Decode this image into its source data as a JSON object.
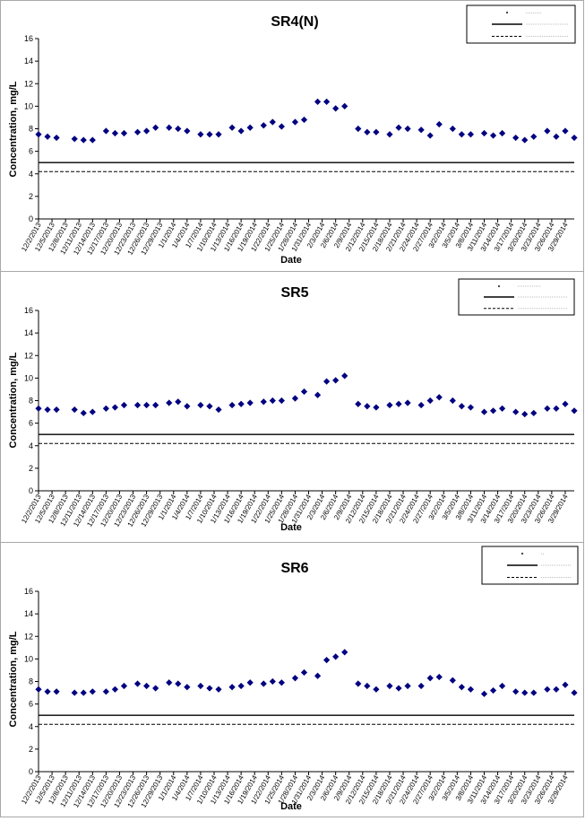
{
  "shared": {
    "ylabel": "Concentration, mg/L",
    "xlabel": "Date",
    "ylim": [
      0,
      16
    ],
    "yticks": [
      0,
      2,
      4,
      6,
      8,
      10,
      12,
      14,
      16
    ],
    "xlim": [
      "12/2/2013",
      "3/31/2014"
    ],
    "xticks": [
      "12/2/2013",
      "12/5/2013",
      "12/8/2013",
      "12/11/2013",
      "12/14/2013",
      "12/17/2013",
      "12/20/2013",
      "12/23/2013",
      "12/26/2013",
      "12/29/2013",
      "1/1/2014",
      "1/4/2014",
      "1/7/2014",
      "1/10/2014",
      "1/13/2014",
      "1/16/2014",
      "1/19/2014",
      "1/22/2014",
      "1/25/2014",
      "1/28/2014",
      "1/31/2014",
      "2/3/2014",
      "2/6/2014",
      "2/9/2014",
      "2/12/2014",
      "2/15/2014",
      "2/18/2014",
      "2/21/2014",
      "2/24/2014",
      "2/27/2014",
      "3/2/2014",
      "3/5/2014",
      "3/8/2014",
      "3/11/2014",
      "3/14/2014",
      "3/17/2014",
      "3/20/2014",
      "3/23/2014",
      "3/26/2014",
      "3/29/2014"
    ],
    "reference_lines": [
      {
        "style": "solid",
        "value": 5.0
      },
      {
        "style": "dashed",
        "value": 4.2
      }
    ],
    "marker_color": "#000080",
    "legend_placement": "top-right"
  },
  "chart_data": [
    {
      "type": "scatter",
      "title": "SR4(N)",
      "x": [
        "12/2/2013",
        "12/4/2013",
        "12/6/2013",
        "12/10/2013",
        "12/12/2013",
        "12/14/2013",
        "12/17/2013",
        "12/19/2013",
        "12/21/2013",
        "12/24/2013",
        "12/26/2013",
        "12/28/2013",
        "12/31/2013",
        "1/2/2014",
        "1/4/2014",
        "1/7/2014",
        "1/9/2014",
        "1/11/2014",
        "1/14/2014",
        "1/16/2014",
        "1/18/2014",
        "1/21/2014",
        "1/23/2014",
        "1/25/2014",
        "1/28/2014",
        "1/30/2014",
        "2/2/2014",
        "2/4/2014",
        "2/6/2014",
        "2/8/2014",
        "2/11/2014",
        "2/13/2014",
        "2/15/2014",
        "2/18/2014",
        "2/20/2014",
        "2/22/2014",
        "2/25/2014",
        "2/27/2014",
        "3/1/2014",
        "3/4/2014",
        "3/6/2014",
        "3/8/2014",
        "3/11/2014",
        "3/13/2014",
        "3/15/2014",
        "3/18/2014",
        "3/20/2014",
        "3/22/2014",
        "3/25/2014",
        "3/27/2014",
        "3/29/2014",
        "3/31/2014"
      ],
      "y": [
        7.5,
        7.3,
        7.2,
        7.1,
        7.0,
        7.0,
        7.8,
        7.6,
        7.6,
        7.7,
        7.8,
        8.1,
        8.1,
        8.0,
        7.8,
        7.5,
        7.5,
        7.5,
        8.1,
        7.8,
        8.1,
        8.3,
        8.6,
        8.2,
        8.6,
        8.8,
        10.4,
        10.4,
        9.8,
        10.0,
        8.0,
        7.7,
        7.7,
        7.5,
        8.1,
        8.0,
        7.9,
        7.4,
        8.4,
        8.0,
        7.5,
        7.5,
        7.6,
        7.4,
        7.6,
        7.2,
        7.0,
        7.3,
        7.8,
        7.3,
        7.8,
        7.2
      ]
    },
    {
      "type": "scatter",
      "title": "SR5",
      "x": [
        "12/2/2013",
        "12/4/2013",
        "12/6/2013",
        "12/10/2013",
        "12/12/2013",
        "12/14/2013",
        "12/17/2013",
        "12/19/2013",
        "12/21/2013",
        "12/24/2013",
        "12/26/2013",
        "12/28/2013",
        "12/31/2013",
        "1/2/2014",
        "1/4/2014",
        "1/7/2014",
        "1/9/2014",
        "1/11/2014",
        "1/14/2014",
        "1/16/2014",
        "1/18/2014",
        "1/21/2014",
        "1/23/2014",
        "1/25/2014",
        "1/28/2014",
        "1/30/2014",
        "2/2/2014",
        "2/4/2014",
        "2/6/2014",
        "2/8/2014",
        "2/11/2014",
        "2/13/2014",
        "2/15/2014",
        "2/18/2014",
        "2/20/2014",
        "2/22/2014",
        "2/25/2014",
        "2/27/2014",
        "3/1/2014",
        "3/4/2014",
        "3/6/2014",
        "3/8/2014",
        "3/11/2014",
        "3/13/2014",
        "3/15/2014",
        "3/18/2014",
        "3/20/2014",
        "3/22/2014",
        "3/25/2014",
        "3/27/2014",
        "3/29/2014",
        "3/31/2014"
      ],
      "y": [
        7.3,
        7.2,
        7.2,
        7.2,
        6.9,
        7.0,
        7.3,
        7.4,
        7.6,
        7.6,
        7.6,
        7.6,
        7.8,
        7.9,
        7.5,
        7.6,
        7.5,
        7.2,
        7.6,
        7.7,
        7.8,
        7.9,
        8.0,
        8.0,
        8.2,
        8.8,
        8.5,
        9.7,
        9.8,
        10.2,
        7.7,
        7.5,
        7.4,
        7.6,
        7.7,
        7.8,
        7.6,
        8.0,
        8.3,
        8.0,
        7.5,
        7.4,
        7.0,
        7.1,
        7.3,
        7.0,
        6.8,
        6.9,
        7.3,
        7.3,
        7.7,
        7.1
      ]
    },
    {
      "type": "scatter",
      "title": "SR6",
      "x": [
        "12/2/2013",
        "12/4/2013",
        "12/6/2013",
        "12/10/2013",
        "12/12/2013",
        "12/14/2013",
        "12/17/2013",
        "12/19/2013",
        "12/21/2013",
        "12/24/2013",
        "12/26/2013",
        "12/28/2013",
        "12/31/2013",
        "1/2/2014",
        "1/4/2014",
        "1/7/2014",
        "1/9/2014",
        "1/11/2014",
        "1/14/2014",
        "1/16/2014",
        "1/18/2014",
        "1/21/2014",
        "1/23/2014",
        "1/25/2014",
        "1/28/2014",
        "1/30/2014",
        "2/2/2014",
        "2/4/2014",
        "2/6/2014",
        "2/8/2014",
        "2/11/2014",
        "2/13/2014",
        "2/15/2014",
        "2/18/2014",
        "2/20/2014",
        "2/22/2014",
        "2/25/2014",
        "2/27/2014",
        "3/1/2014",
        "3/4/2014",
        "3/6/2014",
        "3/8/2014",
        "3/11/2014",
        "3/13/2014",
        "3/15/2014",
        "3/18/2014",
        "3/20/2014",
        "3/22/2014",
        "3/25/2014",
        "3/27/2014",
        "3/29/2014",
        "3/31/2014"
      ],
      "y": [
        7.3,
        7.1,
        7.1,
        7.0,
        7.0,
        7.1,
        7.1,
        7.3,
        7.6,
        7.8,
        7.6,
        7.4,
        7.9,
        7.8,
        7.5,
        7.6,
        7.4,
        7.3,
        7.5,
        7.6,
        7.9,
        7.8,
        8.0,
        7.9,
        8.3,
        8.8,
        8.5,
        9.9,
        10.2,
        10.6,
        7.8,
        7.6,
        7.3,
        7.6,
        7.4,
        7.6,
        7.6,
        8.3,
        8.4,
        8.1,
        7.5,
        7.3,
        6.9,
        7.2,
        7.6,
        7.1,
        7.0,
        7.0,
        7.3,
        7.3,
        7.7,
        7.0
      ]
    }
  ]
}
